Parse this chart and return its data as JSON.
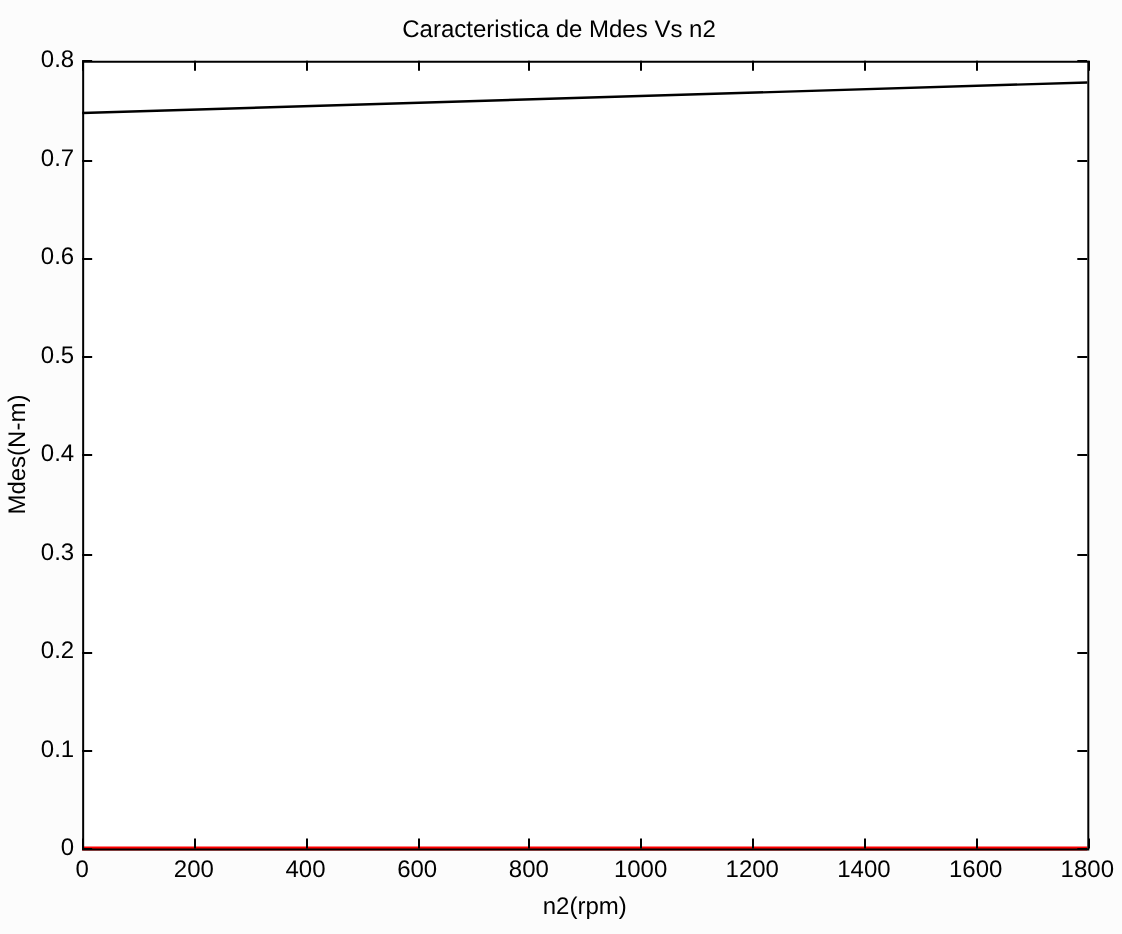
{
  "chart_data": {
    "type": "line",
    "title": "Caracteristica de Mdes Vs n2",
    "xlabel": "n2(rpm)",
    "ylabel": "Mdes(N-m)",
    "x": [
      0,
      1800
    ],
    "series": [
      {
        "color": "#000000",
        "values": [
          0.747,
          0.778
        ]
      },
      {
        "color": "#ff0000",
        "values": [
          0,
          0
        ]
      }
    ],
    "xlim": [
      0,
      1800
    ],
    "xticks": [
      0,
      200,
      400,
      600,
      800,
      1000,
      1200,
      1400,
      1600,
      1800
    ],
    "ylim": [
      0,
      0.8
    ],
    "yticks": [
      0,
      0.1,
      0.2,
      0.3,
      0.4,
      0.5,
      0.6,
      0.7,
      0.8
    ],
    "grid": false,
    "legend": false,
    "marker": "none",
    "line_style": "solid"
  }
}
